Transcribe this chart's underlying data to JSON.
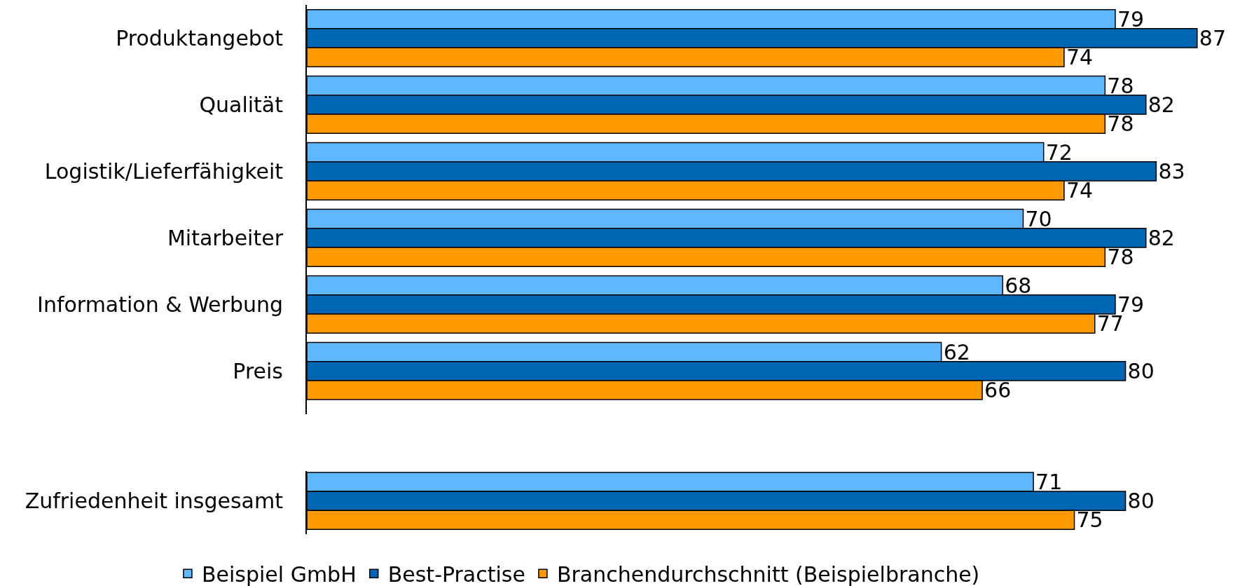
{
  "chart_data": [
    {
      "type": "bar",
      "orientation": "horizontal",
      "categories": [
        "Produktangebot",
        "Qualität",
        "Logistik/Lieferfähigkeit",
        "Mitarbeiter",
        "Information & Werbung",
        "Preis"
      ],
      "series": [
        {
          "color": "#5fb8ff",
          "values": [
            79,
            78,
            72,
            70,
            68,
            62
          ]
        },
        {
          "color": "#0066b3",
          "values": [
            87,
            82,
            83,
            82,
            79,
            80
          ]
        },
        {
          "color": "#ff9900",
          "values": [
            74,
            78,
            74,
            78,
            77,
            66
          ]
        }
      ],
      "data_labels": true,
      "tick_labels": "y",
      "legend": false
    },
    {
      "type": "bar",
      "orientation": "horizontal",
      "categories": [
        "Zufriedenheit insgesamt"
      ],
      "series": [
        {
          "name": "Beispiel GmbH",
          "color": "#5fb8ff",
          "values": [
            71
          ]
        },
        {
          "name": "Best-Practise",
          "color": "#0066b3",
          "values": [
            80
          ]
        },
        {
          "name": "Branchendurchschnitt (Beispielbranche)",
          "color": "#ff9900",
          "values": [
            75
          ]
        }
      ],
      "data_labels": true,
      "tick_labels": "y",
      "legend": "bottom"
    }
  ]
}
